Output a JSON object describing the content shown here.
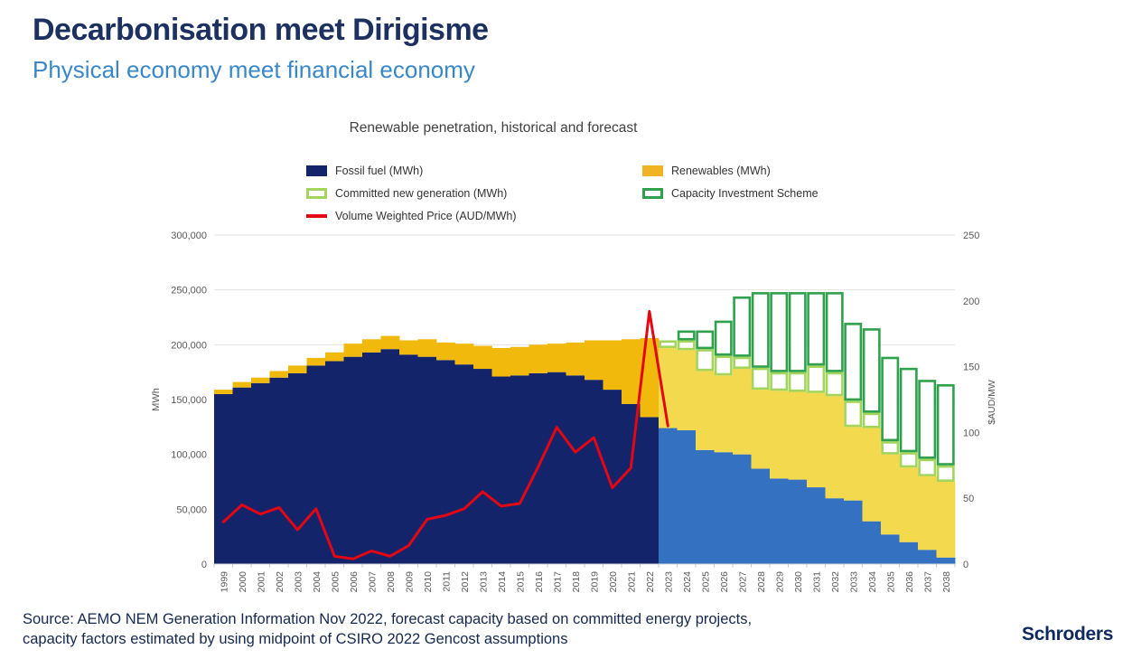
{
  "slide": {
    "title": "Decarbonisation meet Dirigisme",
    "subtitle": "Physical economy meet financial economy",
    "source_line1": "Source: AEMO NEM Generation Information Nov 2022, forecast capacity based on committed energy projects,",
    "source_line2": "capacity factors estimated by using midpoint of CSIRO 2022 Gencost assumptions",
    "logo": "Schroders"
  },
  "chart_data": {
    "type": "bar",
    "title": "Renewable penetration, historical and forecast",
    "subtitle": "",
    "grid": true,
    "legend_position": "top",
    "forecast_start_year": 2023,
    "x": [
      1999,
      2000,
      2001,
      2002,
      2003,
      2004,
      2005,
      2006,
      2007,
      2008,
      2009,
      2010,
      2011,
      2012,
      2013,
      2014,
      2015,
      2016,
      2017,
      2018,
      2019,
      2020,
      2021,
      2022,
      2023,
      2024,
      2025,
      2026,
      2027,
      2028,
      2029,
      2030,
      2031,
      2032,
      2033,
      2034,
      2035,
      2036,
      2037,
      2038
    ],
    "series": [
      {
        "name": "Fossil fuel (MWh)",
        "type": "stacked-bar",
        "axis": "left",
        "values": [
          155000,
          161000,
          165000,
          170000,
          174000,
          181000,
          185000,
          189000,
          193000,
          196000,
          191000,
          189000,
          186000,
          182000,
          178000,
          171000,
          172000,
          174000,
          175000,
          172000,
          168000,
          159000,
          146000,
          134000,
          124000,
          122000,
          104000,
          102000,
          100000,
          87000,
          78000,
          77000,
          70000,
          60000,
          58000,
          39000,
          27000,
          20000,
          13000,
          6000
        ]
      },
      {
        "name": "Renewables (MWh)",
        "type": "stacked-bar",
        "axis": "left",
        "values": [
          4000,
          5000,
          5000,
          6000,
          7000,
          7000,
          8000,
          12000,
          12000,
          12000,
          13000,
          16000,
          16000,
          19000,
          21000,
          26000,
          26000,
          26000,
          26000,
          30000,
          36000,
          45000,
          59000,
          72000,
          73000,
          73000,
          72000,
          70000,
          78000,
          72000,
          80000,
          80000,
          86000,
          93000,
          67000,
          85000,
          73000,
          68000,
          67000,
          69000
        ]
      },
      {
        "name": "Committed new generation (MWh)",
        "type": "stacked-bar-hollow",
        "axis": "left",
        "values": [
          0,
          0,
          0,
          0,
          0,
          0,
          0,
          0,
          0,
          0,
          0,
          0,
          0,
          0,
          0,
          0,
          0,
          0,
          0,
          0,
          0,
          0,
          0,
          0,
          7000,
          9000,
          20000,
          18000,
          11000,
          20000,
          17000,
          18000,
          25000,
          22000,
          24000,
          14000,
          12000,
          14000,
          16000,
          15000
        ]
      },
      {
        "name": "Capacity Investment Scheme",
        "type": "stacked-bar-hollow",
        "axis": "left",
        "values": [
          0,
          0,
          0,
          0,
          0,
          0,
          0,
          0,
          0,
          0,
          0,
          0,
          0,
          0,
          0,
          0,
          0,
          0,
          0,
          0,
          0,
          0,
          0,
          0,
          0,
          9000,
          17000,
          32000,
          55000,
          69000,
          73000,
          73000,
          67000,
          73000,
          71000,
          77000,
          77000,
          77000,
          72000,
          74000
        ]
      },
      {
        "name": "Volume Weighted Price (AUD/MWh)",
        "type": "line",
        "axis": "right",
        "values": [
          32,
          45,
          38,
          43,
          26,
          42,
          6,
          4,
          10,
          6,
          14,
          34,
          37,
          42,
          55,
          44,
          46,
          74,
          104,
          85,
          96,
          58,
          73,
          192,
          105,
          null,
          null,
          null,
          null,
          null,
          null,
          null,
          null,
          null,
          null,
          null,
          null,
          null,
          null,
          null
        ]
      }
    ],
    "left_axis": {
      "label": "MWh",
      "min": 0,
      "max": 300000,
      "step": 50000,
      "ticks": [
        "0",
        "50,000",
        "100,000",
        "150,000",
        "200,000",
        "250,000",
        "300,000"
      ]
    },
    "right_axis": {
      "label": "$AUD/MW",
      "min": 0,
      "max": 250,
      "step": 50,
      "ticks": [
        "0",
        "50",
        "100",
        "150",
        "200",
        "250"
      ]
    },
    "colors": {
      "fossil_hist": "#14246b",
      "fossil_forecast": "#3471c1",
      "renew_hist": "#f0b90b",
      "renew_forecast": "#f2d94e",
      "committed_border": "#a3d55d",
      "cis_border": "#2fa14c",
      "price": "#e30613",
      "grid": "#e2e2e2",
      "axis_text": "#595959"
    }
  }
}
